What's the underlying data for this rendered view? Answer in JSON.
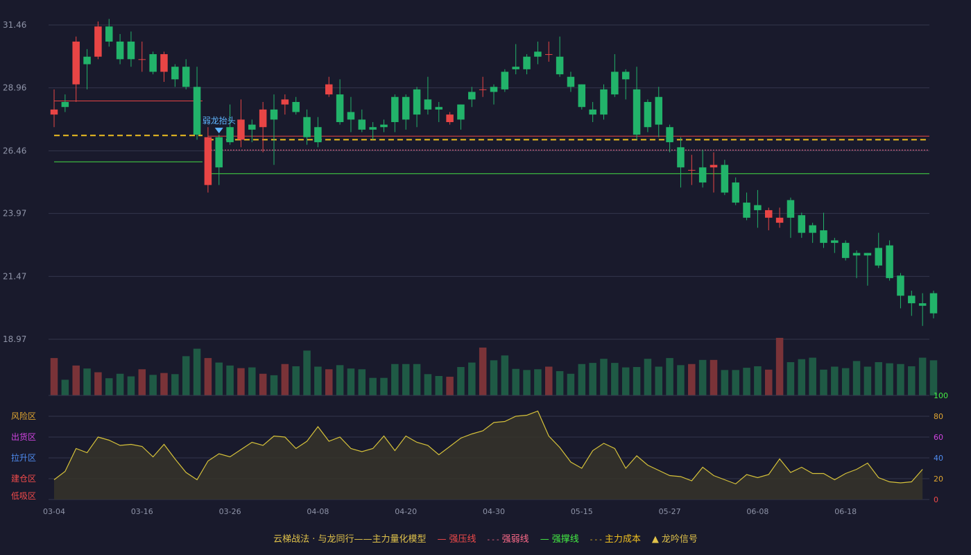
{
  "chart_data": {
    "type": "candlestick",
    "price_axis": {
      "ticks": [
        "31.46",
        "28.96",
        "26.46",
        "23.97",
        "21.47",
        "18.97"
      ],
      "min": 18.97,
      "max": 31.46
    },
    "x_tick_labels": [
      {
        "i": 0,
        "label": "03-04"
      },
      {
        "i": 8,
        "label": "03-16"
      },
      {
        "i": 16,
        "label": "03-26"
      },
      {
        "i": 24,
        "label": "04-08"
      },
      {
        "i": 32,
        "label": "04-20"
      },
      {
        "i": 40,
        "label": "04-30"
      },
      {
        "i": 48,
        "label": "05-15"
      },
      {
        "i": 56,
        "label": "05-27"
      },
      {
        "i": 64,
        "label": "06-08"
      },
      {
        "i": 72,
        "label": "06-18"
      }
    ],
    "candles": [
      [
        27.9,
        28.1,
        28.9,
        27.4
      ],
      [
        28.4,
        28.2,
        28.7,
        28.0
      ],
      [
        29.1,
        30.8,
        31.0,
        28.4
      ],
      [
        30.2,
        29.9,
        30.5,
        28.9
      ],
      [
        30.2,
        31.4,
        31.6,
        30.1
      ],
      [
        31.4,
        30.8,
        31.7,
        30.6
      ],
      [
        30.8,
        30.1,
        31.1,
        29.9
      ],
      [
        30.8,
        30.1,
        31.2,
        29.8
      ],
      [
        30.1,
        30.1,
        30.8,
        29.6
      ],
      [
        30.3,
        29.6,
        30.4,
        29.5
      ],
      [
        29.6,
        30.3,
        30.4,
        29.2
      ],
      [
        29.8,
        29.3,
        29.9,
        29.0
      ],
      [
        29.8,
        29.0,
        30.1,
        28.9
      ],
      [
        29.0,
        27.1,
        29.8,
        26.9
      ],
      [
        25.1,
        27.0,
        27.4,
        24.8
      ],
      [
        27.0,
        25.8,
        27.1,
        25.1
      ],
      [
        27.4,
        26.8,
        28.3,
        26.7
      ],
      [
        26.9,
        27.7,
        28.5,
        26.6
      ],
      [
        27.5,
        27.3,
        27.7,
        26.8
      ],
      [
        27.4,
        28.1,
        28.4,
        26.4
      ],
      [
        28.1,
        27.7,
        28.7,
        25.9
      ],
      [
        28.3,
        28.5,
        28.7,
        27.9
      ],
      [
        28.4,
        28.0,
        28.6,
        27.9
      ],
      [
        27.8,
        27.0,
        28.1,
        26.7
      ],
      [
        27.4,
        26.8,
        27.8,
        26.6
      ],
      [
        28.7,
        29.1,
        29.4,
        28.6
      ],
      [
        28.7,
        27.6,
        29.3,
        27.5
      ],
      [
        28.0,
        27.7,
        28.6,
        27.2
      ],
      [
        27.7,
        27.3,
        28.1,
        27.2
      ],
      [
        27.4,
        27.3,
        27.6,
        26.9
      ],
      [
        27.5,
        27.4,
        27.7,
        27.2
      ],
      [
        28.6,
        27.6,
        28.7,
        27.2
      ],
      [
        28.6,
        27.7,
        28.7,
        27.3
      ],
      [
        28.9,
        27.9,
        29.0,
        27.4
      ],
      [
        28.5,
        28.1,
        29.4,
        27.9
      ],
      [
        28.2,
        28.1,
        28.4,
        27.6
      ],
      [
        27.6,
        27.9,
        28.0,
        27.5
      ],
      [
        28.3,
        27.7,
        28.3,
        27.3
      ],
      [
        28.8,
        28.5,
        29.0,
        28.2
      ],
      [
        28.9,
        28.9,
        29.4,
        28.6
      ],
      [
        29.0,
        28.8,
        29.1,
        28.3
      ],
      [
        29.6,
        28.9,
        29.7,
        28.8
      ],
      [
        29.8,
        29.7,
        30.7,
        29.5
      ],
      [
        30.2,
        29.7,
        30.3,
        29.5
      ],
      [
        30.4,
        30.2,
        30.8,
        29.9
      ],
      [
        30.3,
        30.3,
        30.8,
        30.0
      ],
      [
        30.2,
        29.5,
        31.0,
        29.4
      ],
      [
        29.4,
        29.0,
        29.6,
        28.8
      ],
      [
        29.1,
        28.2,
        29.1,
        28.1
      ],
      [
        28.1,
        27.9,
        28.4,
        27.6
      ],
      [
        28.9,
        27.9,
        29.1,
        27.7
      ],
      [
        29.6,
        28.7,
        30.3,
        28.6
      ],
      [
        29.6,
        29.3,
        29.7,
        28.5
      ],
      [
        28.9,
        27.1,
        29.8,
        26.9
      ],
      [
        28.4,
        27.4,
        28.5,
        27.2
      ],
      [
        28.6,
        27.5,
        29.0,
        27.0
      ],
      [
        27.4,
        26.8,
        27.5,
        26.4
      ],
      [
        26.6,
        25.8,
        27.0,
        25.0
      ],
      [
        25.7,
        25.7,
        26.3,
        25.1
      ],
      [
        25.8,
        25.2,
        26.5,
        25.0
      ],
      [
        25.8,
        25.9,
        26.4,
        24.8
      ],
      [
        25.9,
        24.8,
        26.1,
        24.7
      ],
      [
        25.2,
        24.4,
        25.4,
        24.3
      ],
      [
        24.4,
        23.8,
        24.8,
        23.7
      ],
      [
        24.3,
        24.1,
        24.9,
        23.4
      ],
      [
        23.8,
        24.1,
        24.2,
        23.3
      ],
      [
        23.6,
        23.8,
        24.2,
        23.4
      ],
      [
        24.5,
        23.8,
        24.6,
        23.0
      ],
      [
        23.9,
        23.2,
        24.0,
        23.0
      ],
      [
        23.5,
        23.2,
        23.6,
        22.8
      ],
      [
        23.3,
        22.8,
        24.0,
        22.6
      ],
      [
        22.9,
        22.8,
        23.0,
        22.4
      ],
      [
        22.8,
        22.2,
        22.9,
        22.1
      ],
      [
        22.4,
        22.3,
        22.5,
        21.4
      ],
      [
        22.4,
        22.3,
        22.4,
        21.1
      ],
      [
        22.6,
        21.9,
        23.2,
        21.8
      ],
      [
        22.7,
        21.4,
        22.9,
        21.3
      ],
      [
        21.5,
        20.7,
        21.6,
        20.2
      ],
      [
        20.7,
        20.4,
        20.9,
        19.9
      ],
      [
        20.4,
        20.3,
        20.8,
        19.5
      ],
      [
        20.8,
        20.0,
        20.9,
        19.8
      ]
    ],
    "volume": [
      100,
      42,
      80,
      72,
      62,
      46,
      58,
      51,
      70,
      55,
      60,
      57,
      105,
      125,
      100,
      88,
      80,
      73,
      75,
      58,
      54,
      84,
      78,
      120,
      77,
      70,
      81,
      72,
      70,
      47,
      47,
      84,
      84,
      84,
      57,
      52,
      50,
      76,
      88,
      128,
      94,
      107,
      71,
      68,
      70,
      77,
      65,
      58,
      84,
      87,
      98,
      87,
      75,
      76,
      98,
      77,
      100,
      81,
      84,
      95,
      95,
      68,
      68,
      74,
      78,
      69,
      154,
      89,
      97,
      101,
      69,
      77,
      73,
      92,
      77,
      89,
      86,
      84,
      78,
      101,
      94
    ],
    "indicator": {
      "scale": [
        0,
        100
      ],
      "values": [
        19,
        27,
        49,
        45,
        60,
        57,
        52,
        53,
        51,
        41,
        53,
        39,
        26,
        19,
        37,
        44,
        41,
        48,
        55,
        52,
        61,
        60,
        49,
        56,
        70,
        56,
        60,
        49,
        46,
        49,
        61,
        47,
        61,
        55,
        52,
        43,
        51,
        59,
        63,
        66,
        74,
        75,
        80,
        81,
        85,
        61,
        50,
        36,
        30,
        47,
        54,
        49,
        30,
        42,
        33,
        28,
        23,
        22,
        18,
        31,
        23,
        19,
        15,
        24,
        21,
        24,
        39,
        26,
        31,
        25,
        25,
        19,
        25,
        29,
        35,
        21,
        17,
        16,
        17,
        29
      ]
    },
    "zones": [
      {
        "label": "风险区",
        "level": 80,
        "color": "#e0a630"
      },
      {
        "label": "出货区",
        "level": 60,
        "color": "#d044e0"
      },
      {
        "label": "拉升区",
        "level": 40,
        "color": "#4f8cf0"
      },
      {
        "label": "建仓区",
        "level": 20,
        "color": "#f04a4a"
      },
      {
        "label": "低吸区",
        "level": 0,
        "color": "#f04a4a"
      }
    ],
    "indicator_ticks": [
      {
        "label": "100",
        "level": 100,
        "color": "#44ee44"
      },
      {
        "label": "80",
        "level": 80,
        "color": "#e0a630"
      },
      {
        "label": "60",
        "level": 60,
        "color": "#d044e0"
      },
      {
        "label": "40",
        "level": 40,
        "color": "#4f8cf0"
      },
      {
        "label": "20",
        "level": 20,
        "color": "#e0a630"
      },
      {
        "label": "0",
        "level": 0,
        "color": "#f04a4a"
      }
    ],
    "levels": [
      {
        "type": "resistance",
        "price": 28.44,
        "from": 0,
        "to": 13,
        "color": "#e84545",
        "style": "solid"
      },
      {
        "type": "cost",
        "price": 27.07,
        "from": 0,
        "to": 13,
        "color": "#f0c020",
        "style": "dash"
      },
      {
        "type": "support",
        "price": 26.02,
        "from": 0,
        "to": 13,
        "color": "#44dd44",
        "style": "solid"
      },
      {
        "type": "resistance",
        "price": 27.04,
        "from": 14,
        "to": 80,
        "color": "#e84545",
        "style": "solid"
      },
      {
        "type": "cost",
        "price": 26.9,
        "from": 14,
        "to": 80,
        "color": "#f0c020",
        "style": "dash"
      },
      {
        "type": "weak",
        "price": 26.49,
        "from": 14,
        "to": 80,
        "color": "#ff6b8a",
        "style": "dot"
      },
      {
        "type": "support",
        "price": 25.55,
        "from": 14,
        "to": 80,
        "color": "#44dd44",
        "style": "solid"
      }
    ],
    "signal": {
      "label": "弱龙抬头",
      "index": 14
    },
    "legend": [
      {
        "label": "云梯战法 · 与龙同行——主力量化模型",
        "color": "#e0c24a",
        "symbol": ""
      },
      {
        "label": "强压线",
        "color": "#f04a4a",
        "symbol": "—"
      },
      {
        "label": "强弱线",
        "color": "#ff6b8a",
        "symbol": "----"
      },
      {
        "label": "强撑线",
        "color": "#44ee44",
        "symbol": "—"
      },
      {
        "label": "主力成本",
        "color": "#f0c020",
        "symbol": "----"
      },
      {
        "label": "龙吟信号",
        "color": "#e0c24a",
        "symbol": "▲"
      }
    ],
    "colors": {
      "up": "#e84545",
      "down": "#22b36a",
      "up_vol": "#7a3338",
      "down_vol": "#1f5a45",
      "indicator_line": "#d6c23a",
      "indicator_fill": "#36342a",
      "signal": "#5fb6ff"
    }
  }
}
